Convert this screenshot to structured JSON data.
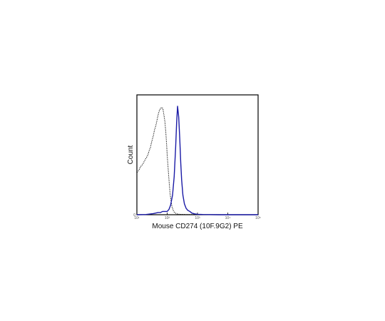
{
  "chart_data": {
    "type": "line",
    "xlabel": "Mouse CD274 (10F.9G2) PE",
    "ylabel": "Count",
    "x_scale": "log",
    "xlim": [
      10,
      100000
    ],
    "ylim": [
      0,
      1
    ],
    "x_ticks": [
      {
        "value": 10,
        "label": "10¹"
      },
      {
        "value": 100,
        "label": "10²"
      },
      {
        "value": 1000,
        "label": "10³"
      },
      {
        "value": 10000,
        "label": "10⁴"
      },
      {
        "value": 100000,
        "label": "10⁵"
      }
    ],
    "y_ticks": [
      {
        "value": 0,
        "label": "0"
      }
    ],
    "grid": false,
    "series": [
      {
        "color": "#000000",
        "style": "dotted",
        "x": [
          10,
          11,
          12,
          13,
          14,
          16,
          18,
          20,
          23,
          26,
          28,
          30,
          32,
          35,
          38,
          42,
          46,
          50,
          55,
          60,
          66,
          72,
          78,
          84,
          90,
          96,
          100,
          108,
          116,
          125,
          135,
          145,
          158,
          170,
          185,
          200,
          220,
          250,
          300,
          400,
          600,
          1000,
          3000,
          10000,
          100000
        ],
        "values": [
          0.39,
          0.4,
          0.42,
          0.44,
          0.45,
          0.47,
          0.5,
          0.52,
          0.55,
          0.6,
          0.62,
          0.66,
          0.69,
          0.73,
          0.78,
          0.82,
          0.87,
          0.92,
          0.96,
          0.98,
          0.99,
          0.98,
          0.92,
          0.86,
          0.76,
          0.64,
          0.55,
          0.42,
          0.3,
          0.19,
          0.12,
          0.07,
          0.04,
          0.025,
          0.015,
          0.01,
          0.006,
          0.004,
          0.003,
          0.002,
          0.002,
          0.001,
          0.001,
          0.0,
          0.0
        ]
      },
      {
        "color": "#1a1aa6",
        "style": "solid",
        "x": [
          10,
          20,
          35,
          50,
          60,
          70,
          80,
          90,
          100,
          115,
          130,
          150,
          170,
          190,
          205,
          220,
          240,
          260,
          280,
          300,
          330,
          370,
          420,
          480,
          560,
          650,
          800,
          1000,
          1500,
          2500,
          5000,
          10000,
          100000
        ],
        "values": [
          0.0,
          0.002,
          0.01,
          0.02,
          0.02,
          0.03,
          0.03,
          0.03,
          0.03,
          0.05,
          0.09,
          0.18,
          0.35,
          0.62,
          0.85,
          1.0,
          0.9,
          0.7,
          0.48,
          0.32,
          0.18,
          0.1,
          0.06,
          0.04,
          0.03,
          0.015,
          0.008,
          0.004,
          0.002,
          0.001,
          0.0,
          0.0,
          0.0
        ]
      }
    ]
  }
}
